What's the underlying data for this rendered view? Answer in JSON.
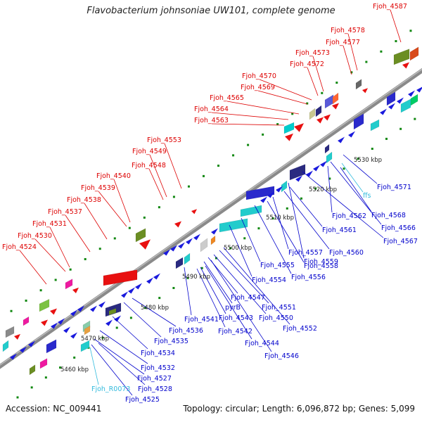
{
  "title": "Flavobacterium johnsoniae UW101, complete genome",
  "footer": {
    "accession": "Accession: NC_009441",
    "topology": "Topology: circular; Length: 6,096,872 bp; Genes: 5,099"
  },
  "colors": {
    "forward_label": "#dd0000",
    "reverse_label": "#0000cc",
    "rna_label": "#33bbdd",
    "backbone": "#8a8a8a",
    "tick": "#118811"
  },
  "kbp_ticks": [
    "5460 kbp",
    "5470 kbp",
    "5480 kbp",
    "5490 kbp",
    "5500 kbp",
    "5510 kbp",
    "5520 kbp",
    "5530 kbp"
  ],
  "forward_labels": [
    "Fjoh_4587",
    "Fjoh_4578",
    "Fjoh_4577",
    "Fjoh_4573",
    "Fjoh_4572",
    "Fjoh_4570",
    "Fjoh_4569",
    "Fjoh_4565",
    "Fjoh_4564",
    "Fjoh_4563",
    "Fjoh_4553",
    "Fjoh_4549",
    "Fjoh_4548",
    "Fjoh_4540",
    "Fjoh_4539",
    "Fjoh_4538",
    "Fjoh_4537",
    "Fjoh_4531",
    "Fjoh_4530",
    "Fjoh_4524"
  ],
  "reverse_labels_right": [
    "Fjoh_4571",
    "ffs",
    "Fjoh_4568",
    "Fjoh_4562",
    "Fjoh_4566",
    "Fjoh_4561",
    "Fjoh_4567",
    "Fjoh_4560",
    "Fjoh_4559",
    "Fjoh_4557",
    "Fjoh_4558",
    "Fjoh_4555",
    "Fjoh_4556",
    "Fjoh_4554"
  ],
  "reverse_labels_bottom": [
    "Fjoh_4547",
    "Fjoh_4551",
    "pyrB",
    "Fjoh_4550",
    "Fjoh_4541",
    "Fjoh_4543",
    "Fjoh_4552",
    "Fjoh_4542",
    "Fjoh_4544",
    "Fjoh_4546",
    "Fjoh_4536",
    "Fjoh_4535",
    "Fjoh_4534",
    "Fjoh_4532",
    "Fjoh_4527",
    "Fjoh_R0073",
    "Fjoh_4528",
    "Fjoh_4525"
  ]
}
